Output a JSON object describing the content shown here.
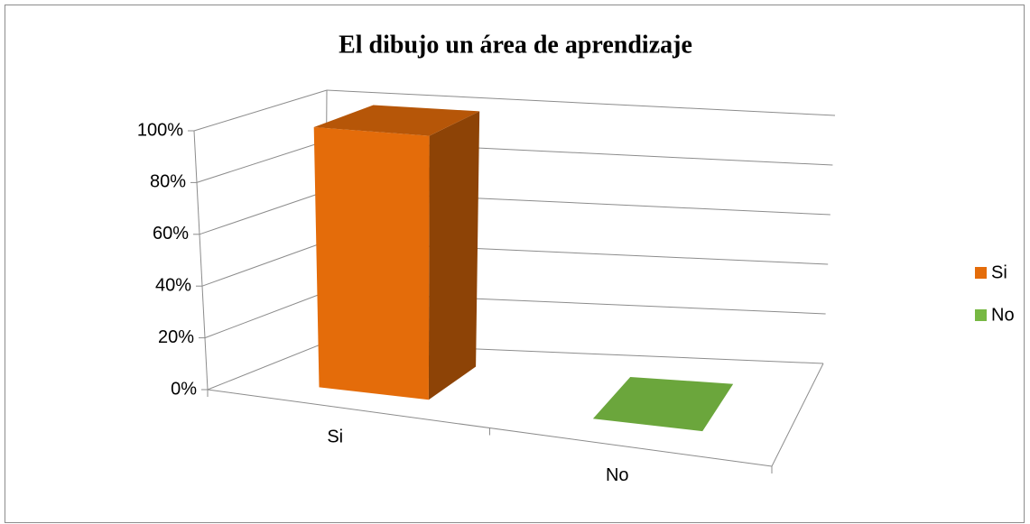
{
  "chart_data": {
    "type": "bar3d",
    "title": "El dibujo un área de aprendizaje",
    "categories": [
      "Si",
      "No"
    ],
    "values": [
      100,
      0
    ],
    "colors": [
      "#e46c0a",
      "#77b843"
    ],
    "ylim": [
      0,
      100
    ],
    "yticks": [
      {
        "value": 0,
        "label": "0%"
      },
      {
        "value": 20,
        "label": "20%"
      },
      {
        "value": 40,
        "label": "40%"
      },
      {
        "value": 60,
        "label": "60%"
      },
      {
        "value": 80,
        "label": "80%"
      },
      {
        "value": 100,
        "label": "100%"
      }
    ],
    "grid": true,
    "legend": "right"
  }
}
